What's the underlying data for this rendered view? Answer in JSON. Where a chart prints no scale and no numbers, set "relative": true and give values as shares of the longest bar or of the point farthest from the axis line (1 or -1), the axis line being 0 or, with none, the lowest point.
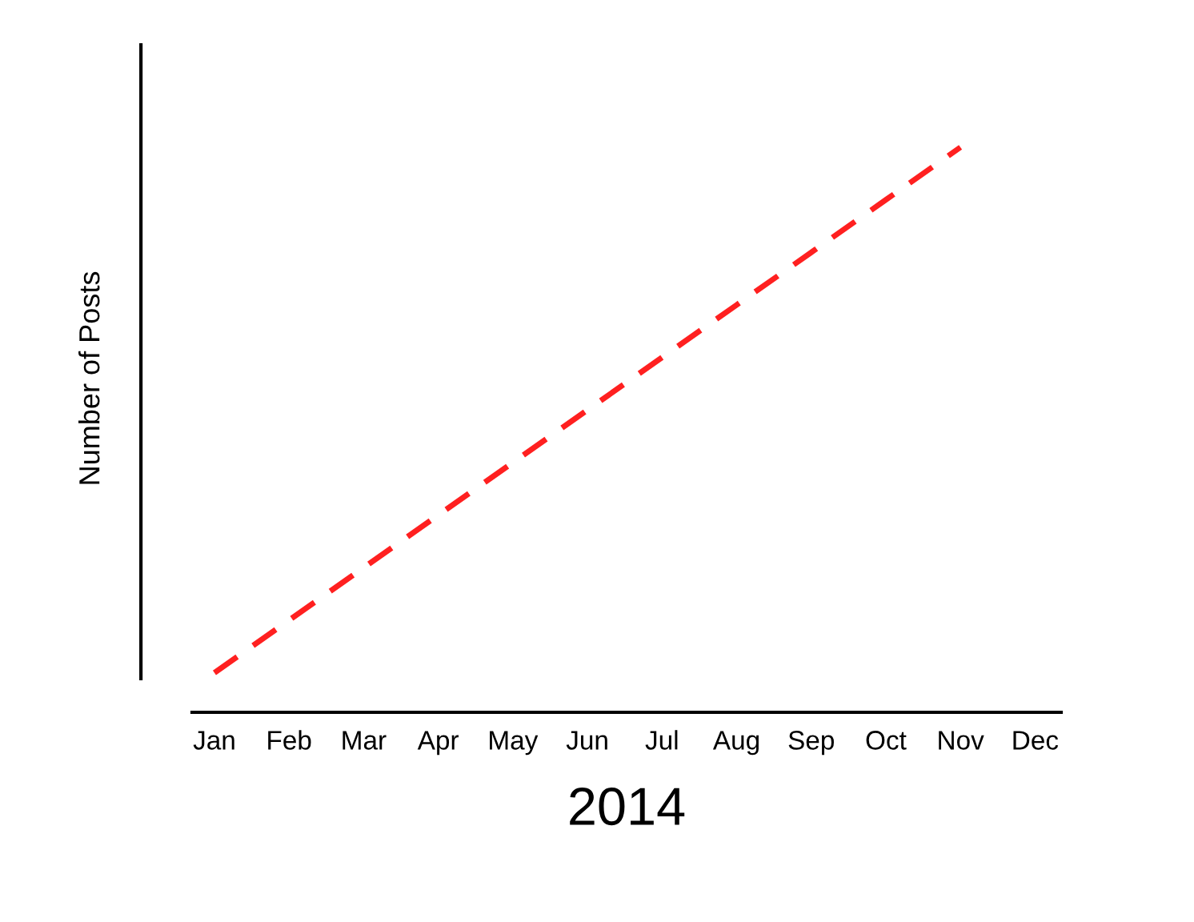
{
  "chart_data": {
    "type": "line",
    "relative": true,
    "xlabel": "2014",
    "ylabel": "Number of Posts",
    "categories": [
      "Jan",
      "Feb",
      "Mar",
      "Apr",
      "May",
      "Jun",
      "Jul",
      "Aug",
      "Sep",
      "Oct",
      "Nov",
      "Dec"
    ],
    "series": [
      {
        "color": "#ff2020",
        "values": [
          0.07,
          0.163,
          0.256,
          0.349,
          0.442,
          0.535,
          0.628,
          0.721,
          0.814,
          0.907,
          1.0,
          null
        ]
      }
    ],
    "line_style": "dashed",
    "marker": "none",
    "grid": false,
    "legend": false
  }
}
